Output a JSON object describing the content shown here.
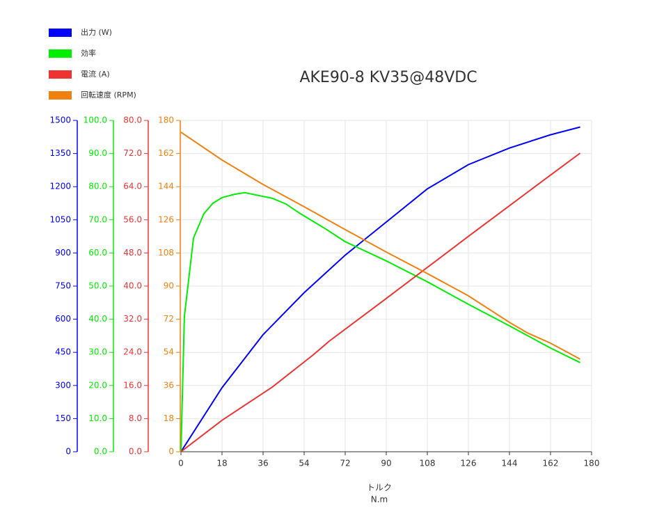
{
  "chart_data": {
    "type": "line",
    "title": "AKE90-8 KV35@48VDC",
    "xlabel": [
      "トルク",
      "N.m"
    ],
    "xlim": [
      0,
      180
    ],
    "xticks": [
      0,
      18,
      36,
      54,
      72,
      90,
      108,
      126,
      144,
      162,
      180
    ],
    "ylim": [
      0,
      1500
    ],
    "yticks": [
      0,
      150,
      300,
      450,
      600,
      750,
      900,
      1050,
      1200,
      1350,
      1500
    ],
    "y2lim": [
      0,
      100
    ],
    "y2ticks": [
      {
        "value": 0,
        "label": "0.0"
      },
      {
        "value": 10,
        "label": "10.0"
      },
      {
        "value": 20,
        "label": "20.0"
      },
      {
        "value": 30,
        "label": "30.0"
      },
      {
        "value": 40,
        "label": "40.0"
      },
      {
        "value": 50,
        "label": "50.0"
      },
      {
        "value": 60,
        "label": "60.0"
      },
      {
        "value": 70,
        "label": "70.0"
      },
      {
        "value": 80,
        "label": "80.0"
      },
      {
        "value": 90,
        "label": "90.0"
      },
      {
        "value": 100,
        "label": "100.0"
      }
    ],
    "y3lim": [
      0,
      80
    ],
    "y3ticks": [
      {
        "value": 0,
        "label": "0.0"
      },
      {
        "value": 8,
        "label": "8.0"
      },
      {
        "value": 16,
        "label": "16.0"
      },
      {
        "value": 24,
        "label": "24.0"
      },
      {
        "value": 32,
        "label": "32.0"
      },
      {
        "value": 40,
        "label": "40.0"
      },
      {
        "value": 48,
        "label": "48.0"
      },
      {
        "value": 56,
        "label": "56.0"
      },
      {
        "value": 64,
        "label": "64.0"
      },
      {
        "value": 72,
        "label": "72.0"
      },
      {
        "value": 80,
        "label": "80.0"
      }
    ],
    "y4lim": [
      0,
      180
    ],
    "y4ticks": [
      0,
      18,
      36,
      54,
      72,
      90,
      108,
      126,
      144,
      162,
      180
    ],
    "grid": true,
    "legend": "top-left",
    "series": [
      {
        "name": "出力 (W)",
        "color": "#0000ff",
        "axis": "y",
        "x": [
          0,
          18,
          36,
          54,
          72,
          90,
          108,
          126,
          144,
          162,
          175
        ],
        "values": [
          0,
          290,
          530,
          720,
          890,
          1040,
          1190,
          1300,
          1375,
          1435,
          1470
        ]
      },
      {
        "name": "効率",
        "color": "#00ee00",
        "axis": "y2",
        "x": [
          0,
          1.5,
          5.5,
          10,
          14,
          18,
          23.5,
          28,
          40,
          46,
          52,
          64,
          72,
          90,
          108,
          126,
          144,
          162,
          175
        ],
        "values": [
          0,
          40.8,
          64.5,
          71.8,
          75,
          76.7,
          77.7,
          78.2,
          76.5,
          74.8,
          72,
          67,
          63.4,
          57.6,
          51.3,
          44.5,
          38,
          31.3,
          26.9
        ]
      },
      {
        "name": "電流 (A)",
        "color": "#ee3333",
        "axis": "y3",
        "x": [
          0,
          18,
          40,
          58,
          65,
          90,
          108,
          126,
          144,
          162,
          175
        ],
        "values": [
          0,
          7.6,
          15.6,
          23.4,
          26.7,
          37,
          44.5,
          52,
          59.4,
          66.8,
          72.1
        ]
      },
      {
        "name": "回転速度 (RPM)",
        "color": "#f08010",
        "axis": "y4",
        "x": [
          0,
          18,
          36,
          54,
          72,
          90,
          108,
          126,
          144,
          152,
          162,
          175
        ],
        "values": [
          173.6,
          158.5,
          145.2,
          133.1,
          120.7,
          108.5,
          96.8,
          84.7,
          70.3,
          64.5,
          59,
          50.3
        ]
      }
    ]
  }
}
